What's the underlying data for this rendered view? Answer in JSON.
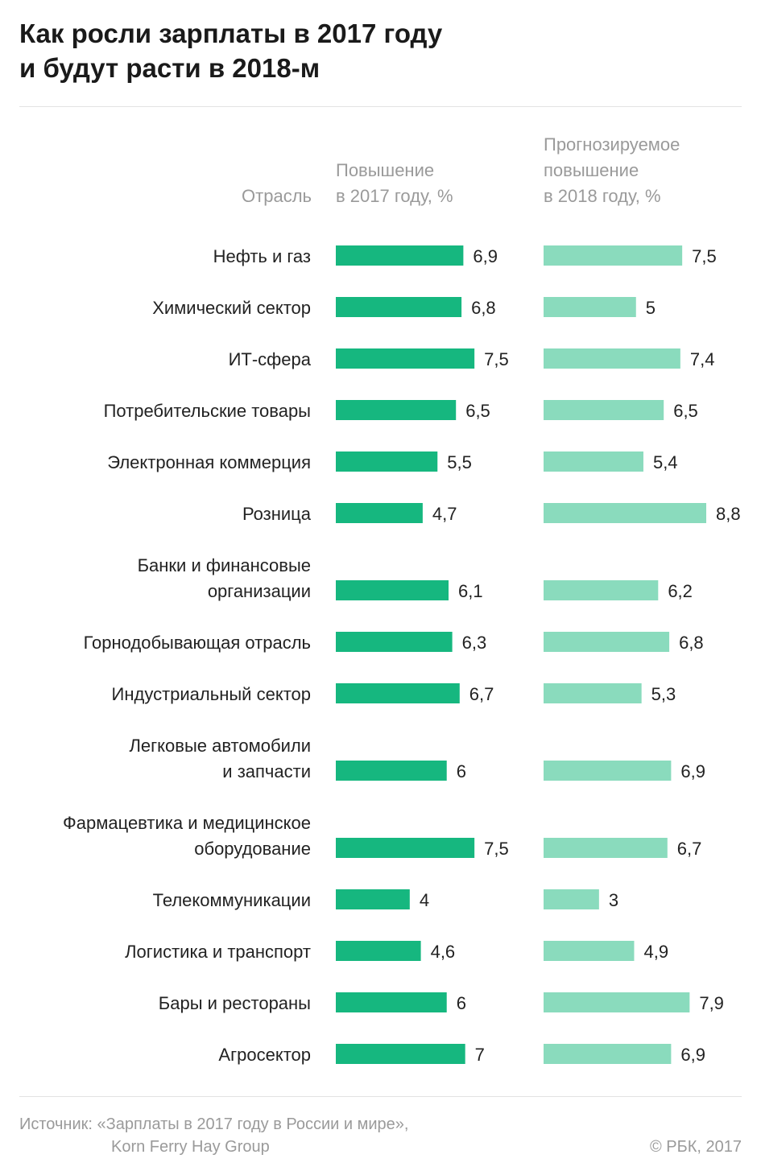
{
  "title": {
    "line1": "Как росли зарплаты в 2017 году",
    "line2": "и будут расти в 2018-м"
  },
  "headers": {
    "industry": "Отрасль",
    "col2017": [
      "Повышение",
      "в 2017 году, %"
    ],
    "col2018": [
      "Прогнозируемое",
      "повышение",
      "в 2018 году, %"
    ]
  },
  "chart_data": {
    "type": "bar",
    "orientation": "horizontal",
    "categories": [
      [
        "Нефть и газ"
      ],
      [
        "Химический сектор"
      ],
      [
        "ИТ-сфера"
      ],
      [
        "Потребительские товары"
      ],
      [
        "Электронная коммерция"
      ],
      [
        "Розница"
      ],
      [
        "Банки и финансовые",
        "организации"
      ],
      [
        "Горнодобывающая отрасль"
      ],
      [
        "Индустриальный сектор"
      ],
      [
        "Легковые автомобили",
        "и запчасти"
      ],
      [
        "Фармацевтика и медицинское",
        "оборудование"
      ],
      [
        "Телекоммуникации"
      ],
      [
        "Логистика и транспорт"
      ],
      [
        "Бары и рестораны"
      ],
      [
        "Агросектор"
      ]
    ],
    "series": [
      {
        "color": "#16b77f",
        "values": [
          6.9,
          6.8,
          7.5,
          6.5,
          5.5,
          4.7,
          6.1,
          6.3,
          6.7,
          6,
          7.5,
          4,
          4.6,
          6,
          7
        ],
        "labels": [
          "6,9",
          "6,8",
          "7,5",
          "6,5",
          "5,5",
          "4,7",
          "6,1",
          "6,3",
          "6,7",
          "6",
          "7,5",
          "4",
          "4,6",
          "6",
          "7"
        ]
      },
      {
        "color": "#8adbbd",
        "values": [
          7.5,
          5,
          7.4,
          6.5,
          5.4,
          8.8,
          6.2,
          6.8,
          5.3,
          6.9,
          6.7,
          3,
          4.9,
          7.9,
          6.9
        ],
        "labels": [
          "7,5",
          "5",
          "7,4",
          "6,5",
          "5,4",
          "8,8",
          "6,2",
          "6,8",
          "5,3",
          "6,9",
          "6,7",
          "3",
          "4,9",
          "7,9",
          "6,9"
        ]
      }
    ],
    "xlim": [
      0,
      8.8
    ],
    "grid": false,
    "legend": "none"
  },
  "source": {
    "line1": "Источник: «Зарплаты в 2017 году в России и мире»,",
    "line2": "Korn Ferry Hay Group"
  },
  "copyright": "© РБК, 2017"
}
